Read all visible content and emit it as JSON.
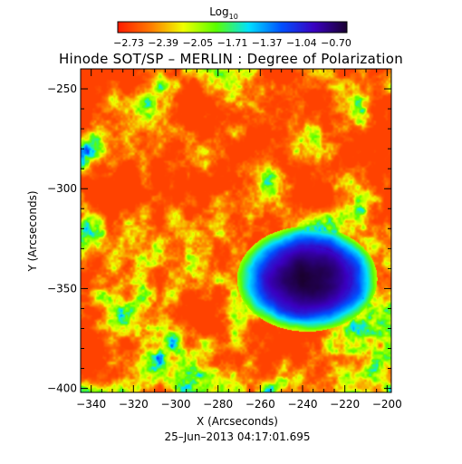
{
  "chart_data": {
    "type": "heatmap",
    "title": "Hinode SOT/SP – MERLIN : Degree of Polarization",
    "colorbar": {
      "label": "Log",
      "label_subscript": "10",
      "ticks": [
        "−2.73",
        "−2.39",
        "−2.05",
        "−1.71",
        "−1.37",
        "−1.04",
        "−0.70"
      ],
      "range": [
        -2.73,
        -0.7
      ],
      "colormap": [
        "#ff1a00",
        "#ff7a00",
        "#f0ff00",
        "#5aff00",
        "#00e0ff",
        "#0050ff",
        "#3a00c0",
        "#1a0030"
      ]
    },
    "xlabel": "X (Arcseconds)",
    "ylabel": "Y (Arcseconds)",
    "xlim": [
      -345,
      -198
    ],
    "ylim": [
      -402,
      -240
    ],
    "xticks": [
      -340,
      -320,
      -300,
      -280,
      -260,
      -240,
      -220,
      -200
    ],
    "yticks": [
      -250,
      -300,
      -350,
      -400
    ],
    "xtick_labels": [
      "−340",
      "−320",
      "−300",
      "−280",
      "−260",
      "−240",
      "−220",
      "−200"
    ],
    "ytick_labels": [
      "−250",
      "−300",
      "−350",
      "−400"
    ],
    "sunspot_center": [
      -238,
      -345
    ],
    "timestamp": "25–Jun–2013 04:17:01.695"
  }
}
